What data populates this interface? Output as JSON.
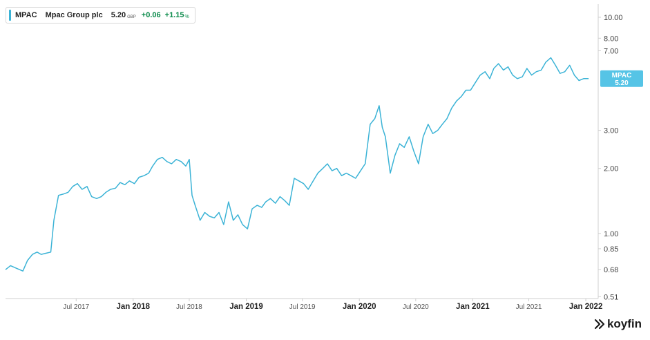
{
  "legend": {
    "ticker": "MPAC",
    "name": "Mpac Group plc",
    "price": "5.20",
    "currency": "GBP",
    "change": "+0.06",
    "change_pct": "+1.15",
    "pct_sign": "%"
  },
  "price_badge": {
    "ticker": "MPAC",
    "value": "5.20"
  },
  "brand": {
    "name": "koyfin"
  },
  "colors": {
    "line": "#3bb3d6",
    "badge": "#56c4e6",
    "positive": "#0a8a4a",
    "axis": "#444444"
  },
  "chart_data": {
    "type": "line",
    "title": "",
    "xlabel": "",
    "ylabel": "",
    "y_scale": "log",
    "ylim": [
      0.5,
      11.5
    ],
    "xlim": [
      "2016-11-15",
      "2022-02-10"
    ],
    "y_ticks": [
      10.0,
      8.0,
      7.0,
      3.0,
      2.0,
      1.0,
      0.85,
      0.68,
      0.51
    ],
    "y_tick_labels": [
      "10.00",
      "8.00",
      "7.00",
      "3.00",
      "2.00",
      "1.00",
      "0.85",
      "0.68",
      "0.51"
    ],
    "x_ticks": [
      "2017-07-01",
      "2018-01-01",
      "2018-07-01",
      "2019-01-01",
      "2019-07-01",
      "2020-01-01",
      "2020-07-01",
      "2021-01-01",
      "2021-07-01",
      "2022-01-01"
    ],
    "x_tick_labels": [
      "Jul 2017",
      "Jan 2018",
      "Jul 2018",
      "Jan 2019",
      "Jul 2019",
      "Jan 2020",
      "Jul 2020",
      "Jan 2021",
      "Jul 2021",
      "Jan 2022"
    ],
    "x_tick_bold": [
      false,
      true,
      false,
      true,
      false,
      true,
      false,
      true,
      false,
      true
    ],
    "grid": false,
    "series": [
      {
        "name": "MPAC",
        "x": [
          "2016-11-15",
          "2016-12-01",
          "2016-12-20",
          "2017-01-10",
          "2017-01-25",
          "2017-02-10",
          "2017-02-25",
          "2017-03-10",
          "2017-03-25",
          "2017-04-10",
          "2017-04-20",
          "2017-05-05",
          "2017-05-20",
          "2017-06-05",
          "2017-06-20",
          "2017-07-05",
          "2017-07-20",
          "2017-08-05",
          "2017-08-20",
          "2017-09-05",
          "2017-09-20",
          "2017-10-05",
          "2017-10-20",
          "2017-11-05",
          "2017-11-20",
          "2017-12-05",
          "2017-12-20",
          "2018-01-05",
          "2018-01-20",
          "2018-02-05",
          "2018-02-20",
          "2018-03-05",
          "2018-03-20",
          "2018-04-05",
          "2018-04-20",
          "2018-05-05",
          "2018-05-20",
          "2018-06-05",
          "2018-06-20",
          "2018-07-01",
          "2018-07-10",
          "2018-07-20",
          "2018-08-05",
          "2018-08-20",
          "2018-09-05",
          "2018-09-20",
          "2018-10-05",
          "2018-10-20",
          "2018-11-05",
          "2018-11-20",
          "2018-12-05",
          "2018-12-20",
          "2019-01-05",
          "2019-01-20",
          "2019-02-05",
          "2019-02-20",
          "2019-03-05",
          "2019-03-20",
          "2019-04-05",
          "2019-04-20",
          "2019-05-05",
          "2019-05-20",
          "2019-06-05",
          "2019-06-20",
          "2019-07-05",
          "2019-07-20",
          "2019-08-05",
          "2019-08-20",
          "2019-09-05",
          "2019-09-20",
          "2019-10-05",
          "2019-10-20",
          "2019-11-05",
          "2019-11-20",
          "2019-12-05",
          "2019-12-20",
          "2020-01-05",
          "2020-01-20",
          "2020-02-05",
          "2020-02-20",
          "2020-03-05",
          "2020-03-15",
          "2020-03-25",
          "2020-04-10",
          "2020-04-25",
          "2020-05-10",
          "2020-05-25",
          "2020-06-10",
          "2020-06-25",
          "2020-07-10",
          "2020-07-25",
          "2020-08-10",
          "2020-08-25",
          "2020-09-10",
          "2020-09-25",
          "2020-10-10",
          "2020-10-25",
          "2020-11-10",
          "2020-11-25",
          "2020-12-10",
          "2020-12-25",
          "2021-01-10",
          "2021-01-25",
          "2021-02-10",
          "2021-02-25",
          "2021-03-10",
          "2021-03-25",
          "2021-04-10",
          "2021-04-25",
          "2021-05-10",
          "2021-05-25",
          "2021-06-10",
          "2021-06-25",
          "2021-07-10",
          "2021-07-25",
          "2021-08-10",
          "2021-08-25",
          "2021-09-10",
          "2021-09-25",
          "2021-10-10",
          "2021-10-25",
          "2021-11-10",
          "2021-11-25",
          "2021-12-10",
          "2021-12-25",
          "2022-01-10"
        ],
        "y": [
          0.68,
          0.71,
          0.69,
          0.67,
          0.75,
          0.8,
          0.82,
          0.8,
          0.81,
          0.82,
          1.15,
          1.5,
          1.52,
          1.55,
          1.65,
          1.7,
          1.6,
          1.65,
          1.48,
          1.45,
          1.48,
          1.55,
          1.6,
          1.62,
          1.72,
          1.68,
          1.75,
          1.7,
          1.82,
          1.85,
          1.9,
          2.05,
          2.2,
          2.25,
          2.15,
          2.1,
          2.2,
          2.15,
          2.05,
          2.2,
          1.5,
          1.35,
          1.15,
          1.25,
          1.2,
          1.18,
          1.25,
          1.1,
          1.4,
          1.15,
          1.22,
          1.1,
          1.05,
          1.3,
          1.35,
          1.32,
          1.4,
          1.45,
          1.38,
          1.48,
          1.42,
          1.35,
          1.8,
          1.75,
          1.7,
          1.6,
          1.75,
          1.9,
          2.0,
          2.1,
          1.95,
          2.0,
          1.85,
          1.9,
          1.85,
          1.8,
          1.95,
          2.1,
          3.2,
          3.4,
          3.9,
          3.1,
          2.8,
          1.9,
          2.3,
          2.6,
          2.5,
          2.8,
          2.4,
          2.1,
          2.8,
          3.2,
          2.9,
          3.0,
          3.2,
          3.4,
          3.8,
          4.1,
          4.3,
          4.6,
          4.6,
          5.0,
          5.4,
          5.6,
          5.2,
          5.8,
          6.1,
          5.7,
          5.9,
          5.4,
          5.2,
          5.3,
          5.8,
          5.4,
          5.6,
          5.7,
          6.2,
          6.5,
          6.0,
          5.5,
          5.6,
          6.0,
          5.4,
          5.1,
          5.2,
          5.2
        ]
      }
    ]
  }
}
